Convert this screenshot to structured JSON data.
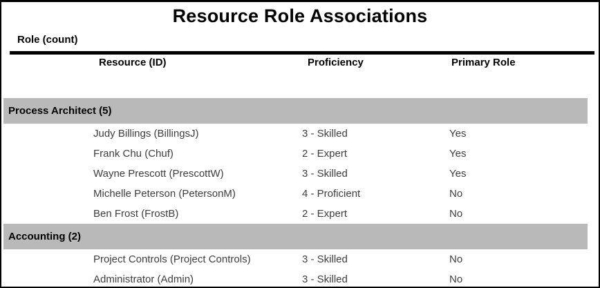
{
  "report": {
    "title": "Resource Role Associations",
    "group_column_label": "Role (count)",
    "columns": [
      "Resource (ID)",
      "Proficiency",
      "Primary Role"
    ],
    "colors": {
      "page_border": "#000000",
      "group_band_bg": "#b9b9b9",
      "heading_text": "#000000",
      "data_text": "#3d3d3d"
    },
    "sections": [
      {
        "group": "Process Architect (5)",
        "rows": [
          {
            "resource": "Judy Billings (BillingsJ)",
            "proficiency": "3 - Skilled",
            "primary": "Yes"
          },
          {
            "resource": "Frank Chu (Chuf)",
            "proficiency": "2 - Expert",
            "primary": "Yes"
          },
          {
            "resource": "Wayne Prescott (PrescottW)",
            "proficiency": "3 - Skilled",
            "primary": "Yes"
          },
          {
            "resource": "Michelle Peterson (PetersonM)",
            "proficiency": "4 - Proficient",
            "primary": "No"
          },
          {
            "resource": "Ben Frost (FrostB)",
            "proficiency": "2 - Expert",
            "primary": "No"
          }
        ]
      },
      {
        "group": "Accounting (2)",
        "rows": [
          {
            "resource": "Project Controls (Project Controls)",
            "proficiency": "3 - Skilled",
            "primary": "No"
          },
          {
            "resource": "Administrator (Admin)",
            "proficiency": "3 - Skilled",
            "primary": "No"
          }
        ]
      }
    ]
  }
}
